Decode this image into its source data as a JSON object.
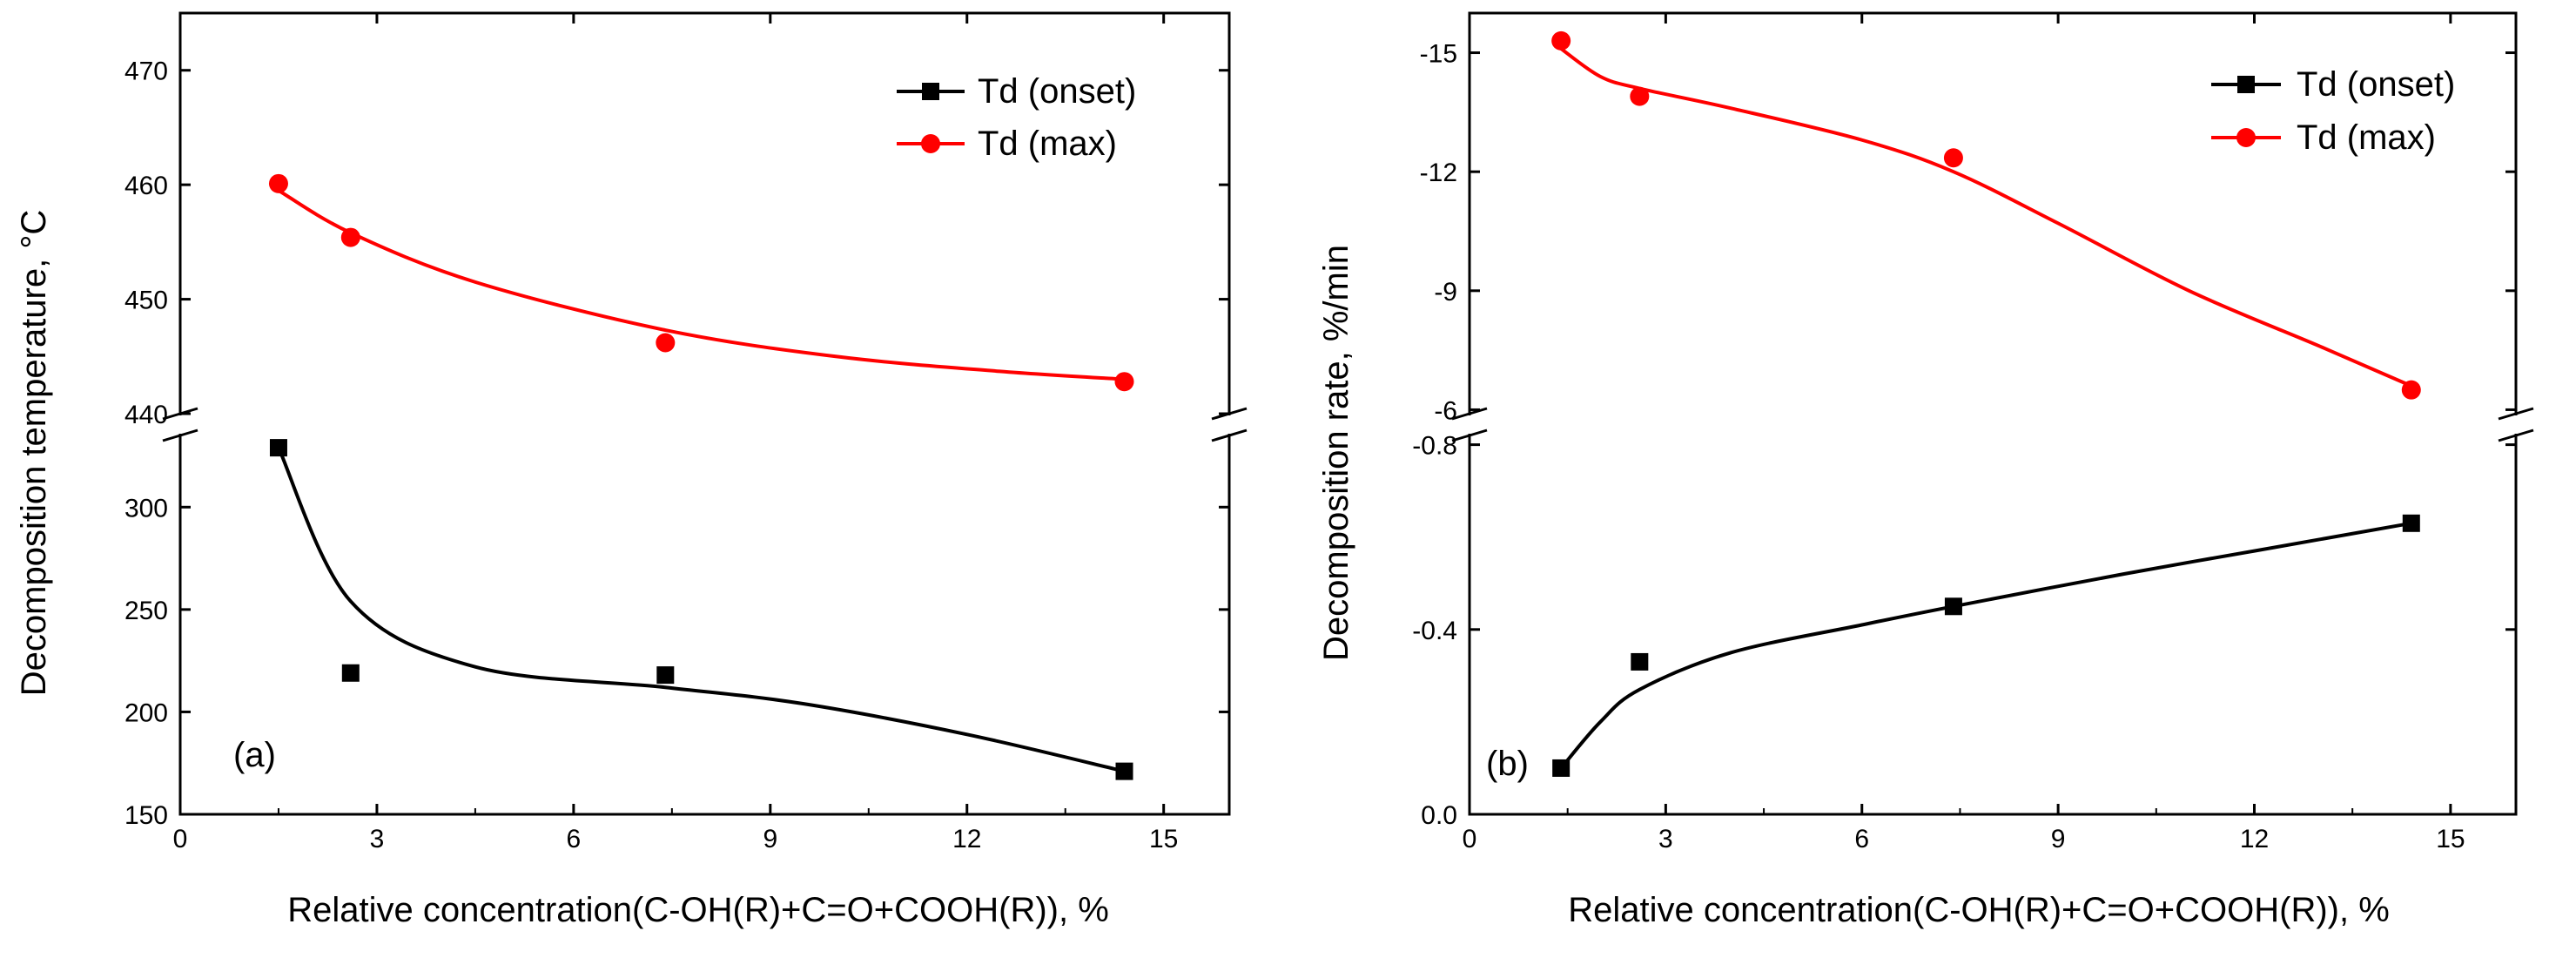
{
  "chart_data": [
    {
      "type": "scatter",
      "panel_label": "(a)",
      "xlabel": "Relative concentration(C-OH(R)+C=O+COOH(R)), %",
      "ylabel": "Decomposition temperature, °C",
      "xlim": [
        0,
        16
      ],
      "x_ticks": [
        "0",
        "3",
        "6",
        "9",
        "12",
        "15"
      ],
      "broken_y_axis": true,
      "upper_segment": {
        "ylim": [
          440,
          475
        ],
        "y_ticks": [
          "440",
          "450",
          "460",
          "470"
        ]
      },
      "lower_segment": {
        "ylim": [
          150,
          335
        ],
        "y_ticks": [
          "150",
          "200",
          "250",
          "300"
        ]
      },
      "legend_position": "top-right",
      "series": [
        {
          "name": "Td (onset)",
          "marker": "square",
          "color": "#000000",
          "segment": "lower",
          "x": [
            1.5,
            2.6,
            7.4,
            14.4
          ],
          "y": [
            329,
            219,
            218,
            171
          ],
          "fit_curve": [
            [
              1.5,
              329
            ],
            [
              2.6,
              254
            ],
            [
              4.5,
              222
            ],
            [
              7.4,
              212
            ],
            [
              9.5,
              204
            ],
            [
              12,
              189
            ],
            [
              14.4,
              171
            ]
          ]
        },
        {
          "name": "Td (max)",
          "marker": "circle",
          "color": "#ff0000",
          "segment": "upper",
          "x": [
            1.5,
            2.6,
            7.4,
            14.4
          ],
          "y": [
            460.1,
            455.4,
            446.2,
            442.8
          ],
          "fit_curve": [
            [
              1.5,
              459.5
            ],
            [
              2.6,
              455.8
            ],
            [
              4.5,
              451.5
            ],
            [
              7.4,
              447.3
            ],
            [
              10,
              445
            ],
            [
              12.5,
              443.7
            ],
            [
              14.4,
              443
            ]
          ]
        }
      ]
    },
    {
      "type": "scatter",
      "panel_label": "(b)",
      "xlabel": "Relative concentration(C-OH(R)+C=O+COOH(R)), %",
      "ylabel": "Decomposition rate, %/min",
      "xlim": [
        0,
        16
      ],
      "x_ticks": [
        "0",
        "3",
        "6",
        "9",
        "12",
        "15"
      ],
      "broken_y_axis": true,
      "upper_segment": {
        "ylim": [
          -5.9,
          -16
        ],
        "y_ticks": [
          "-6",
          "-9",
          "-12",
          "-15"
        ]
      },
      "lower_segment": {
        "ylim": [
          0.0,
          -0.82
        ],
        "y_ticks": [
          "0.0",
          "-0.4",
          "-0.8"
        ]
      },
      "legend_position": "top-right",
      "series": [
        {
          "name": "Td (onset)",
          "marker": "square",
          "color": "#000000",
          "segment": "lower",
          "x": [
            1.4,
            2.6,
            7.4,
            14.4
          ],
          "y": [
            -0.1,
            -0.33,
            -0.45,
            -0.63
          ],
          "fit_curve": [
            [
              1.4,
              -0.1
            ],
            [
              2.0,
              -0.2
            ],
            [
              2.6,
              -0.27
            ],
            [
              4,
              -0.35
            ],
            [
              6,
              -0.41
            ],
            [
              7.4,
              -0.45
            ],
            [
              10,
              -0.52
            ],
            [
              12,
              -0.57
            ],
            [
              14.4,
              -0.63
            ]
          ]
        },
        {
          "name": "Td (max)",
          "marker": "circle",
          "color": "#ff0000",
          "segment": "upper",
          "x": [
            1.4,
            2.6,
            7.4,
            14.4
          ],
          "y": [
            -15.3,
            -13.9,
            -12.35,
            -6.5
          ],
          "fit_curve": [
            [
              1.4,
              -15.1
            ],
            [
              2.0,
              -14.4
            ],
            [
              2.6,
              -14.1
            ],
            [
              4,
              -13.6
            ],
            [
              6,
              -12.8
            ],
            [
              7.4,
              -12.0
            ],
            [
              9,
              -10.7
            ],
            [
              11,
              -9.0
            ],
            [
              13,
              -7.6
            ],
            [
              14.4,
              -6.6
            ]
          ]
        }
      ]
    }
  ]
}
